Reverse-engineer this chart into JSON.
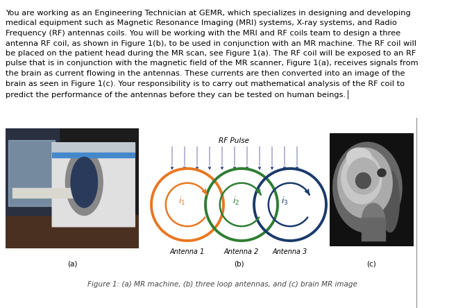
{
  "background_color": "#ffffff",
  "fig_width": 6.7,
  "fig_height": 4.44,
  "dpi": 100,
  "paragraph_text": "You are working as an Engineering Technician at GEMR, which specializes in designing and developing medical equipment such as Magnetic Resonance Imaging (MRI) systems, X-ray systems, and Radio Frequency (RF) antennas coils. You will be working with the MRI and RF coils team to design a three antenna RF coil, as shown in Figure 1(b), to be used in conjunction with an MR machine. The RF coil will be placed on the patient head during the MR scan, see Figure 1(a). The RF coil will be exposed to an RF pulse that is in conjunction with the magnetic field of the MR scanner, Figure 1(a), receives signals from the brain as current flowing in the antennas. These currents are then converted into an image of the brain as seen in Figure 1(c). Your responsibility is to carry out mathematical analysis of the RF coil to predict the performance of the antennas before they can be tested on human beings.",
  "paragraph_fontsize": 8.2,
  "circle_colors": [
    "#E87722",
    "#2E7D32",
    "#1A3A6B"
  ],
  "circle_lw": 2.8,
  "antenna_labels": [
    "Antenna 1",
    "Antenna 2",
    "Antenna 3"
  ],
  "subfig_labels": [
    "(a)",
    "(b)",
    "(c)"
  ],
  "caption_text": "Figure 1: (a) MR machine, (b) three loop antennas, and (c) brain MR image",
  "rf_pulse_text": "RF Pulse",
  "border_color": "#999999",
  "arrow_dark": "#2F3F7F",
  "arrow_shaft": "#8888aa"
}
